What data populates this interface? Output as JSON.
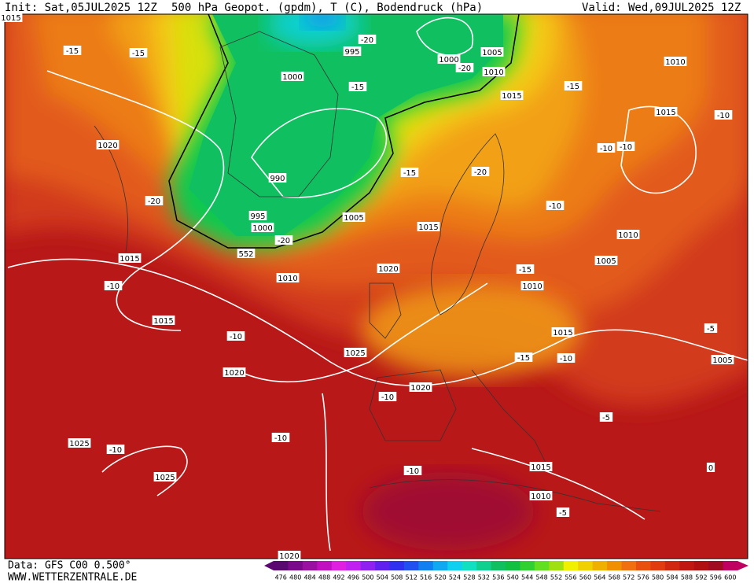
{
  "header": {
    "init": "Init: Sat,05JUL2025 12Z",
    "title": "500 hPa Geopot. (gpdm), T (C), Bodendruck (hPa)",
    "valid": "Valid: Wed,09JUL2025 12Z"
  },
  "footer": {
    "data": "Data: GFS C00 0.500°",
    "site": "WWW.WETTERZENTRALE.DE"
  },
  "colorbar": {
    "levels": [
      476,
      480,
      484,
      488,
      492,
      496,
      500,
      504,
      508,
      512,
      516,
      520,
      524,
      528,
      532,
      536,
      540,
      544,
      548,
      552,
      556,
      560,
      564,
      568,
      572,
      576,
      580,
      584,
      588,
      592,
      596,
      600
    ],
    "colors": [
      "#5a0a6e",
      "#7a0a8a",
      "#9a10a0",
      "#c010c0",
      "#e020e0",
      "#c020f0",
      "#9020f0",
      "#6020f0",
      "#3030f0",
      "#2050f0",
      "#1080f0",
      "#10a8f0",
      "#10d0f0",
      "#10e0c0",
      "#10d090",
      "#10c060",
      "#10c040",
      "#30d030",
      "#60e020",
      "#a0e010",
      "#f0f000",
      "#f0d000",
      "#f0b000",
      "#f09000",
      "#f07010",
      "#e85010",
      "#e03c10",
      "#d02810",
      "#c01810",
      "#b01010",
      "#a00c20",
      "#c00060"
    ]
  },
  "contour_labels": {
    "pressure": [
      "1000",
      "995",
      "1000",
      "1005",
      "1010",
      "1010",
      "1015",
      "1015",
      "1020",
      "990",
      "995",
      "1000",
      "1005",
      "1015",
      "1015",
      "1010",
      "1020",
      "1010",
      "1005",
      "1010",
      "1015",
      "1025",
      "1015",
      "1005",
      "1020",
      "1020",
      "1025",
      "1025",
      "1015",
      "1010",
      "1020",
      "1015"
    ],
    "temperature": [
      "-15",
      "-15",
      "-20",
      "-20",
      "-15",
      "-15",
      "-10",
      "-10",
      "-10",
      "-15",
      "-20",
      "-20",
      "-20",
      "-10",
      "-15",
      "-10",
      "-10",
      "-15",
      "-10",
      "-5",
      "-10",
      "-5",
      "-10",
      "-10",
      "-10",
      "0",
      "-5"
    ],
    "geopotential": [
      "552"
    ]
  }
}
